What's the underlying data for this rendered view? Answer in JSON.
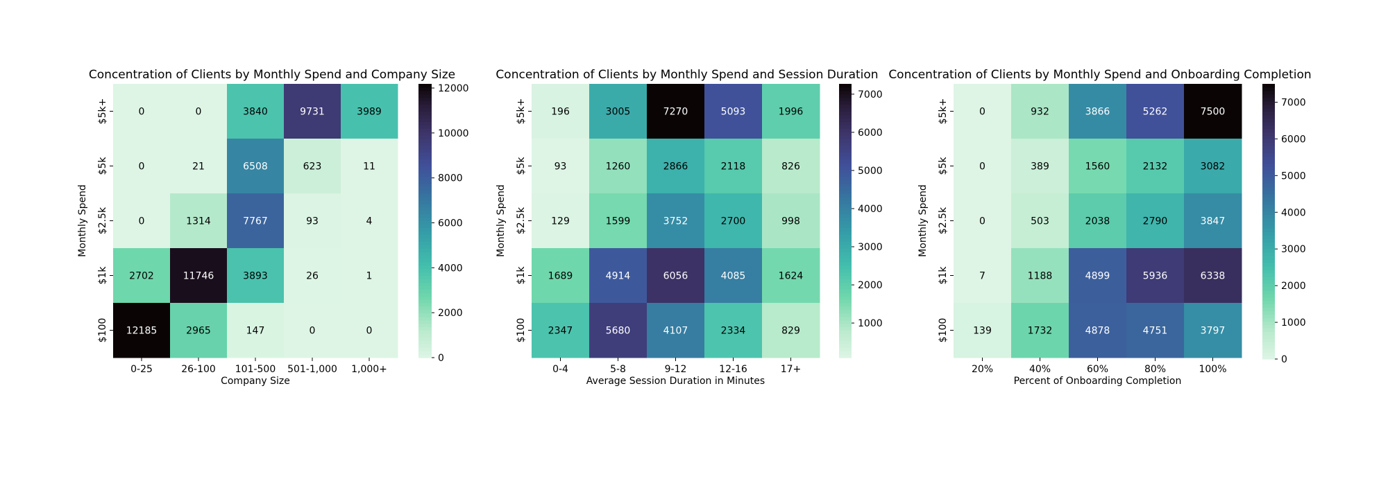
{
  "chart_data": [
    {
      "type": "heatmap",
      "title": "Concentration of Clients by Monthly Spend and Company Size",
      "xlabel": "Company Size",
      "ylabel": "Monthly Spend",
      "x_categories": [
        "0-25",
        "26-100",
        "101-500",
        "501-1,000",
        "1,000+"
      ],
      "y_categories": [
        "$5k+",
        "$5k",
        "$2.5k",
        "$1k",
        "$100"
      ],
      "values": [
        [
          0,
          0,
          3840,
          9731,
          3989
        ],
        [
          0,
          21,
          6508,
          623,
          11
        ],
        [
          0,
          1314,
          7767,
          93,
          4
        ],
        [
          2702,
          11746,
          3893,
          26,
          1
        ],
        [
          12185,
          2965,
          147,
          0,
          0
        ]
      ],
      "colorbar": {
        "min": 0,
        "max": 12185,
        "ticks": [
          "0",
          "2000",
          "4000",
          "6000",
          "8000",
          "10000",
          "12000"
        ]
      },
      "colormap": "mako_r"
    },
    {
      "type": "heatmap",
      "title": "Concentration of Clients by Monthly Spend and Session Duration",
      "xlabel": "Average Session Duration in Minutes",
      "ylabel": "Monthly Spend",
      "x_categories": [
        "0-4",
        "5-8",
        "9-12",
        "12-16",
        "17+"
      ],
      "y_categories": [
        "$5k+",
        "$5k",
        "$2.5k",
        "$1k",
        "$100"
      ],
      "values": [
        [
          196,
          3005,
          7270,
          5093,
          1996
        ],
        [
          93,
          1260,
          2866,
          2118,
          826
        ],
        [
          129,
          1599,
          3752,
          2700,
          998
        ],
        [
          1689,
          4914,
          6056,
          4085,
          1624
        ],
        [
          2347,
          5680,
          4107,
          2334,
          829
        ]
      ],
      "colorbar": {
        "min": 93,
        "max": 7270,
        "ticks": [
          "1000",
          "2000",
          "3000",
          "4000",
          "5000",
          "6000",
          "7000"
        ]
      },
      "colormap": "mako_r"
    },
    {
      "type": "heatmap",
      "title": "Concentration of Clients by Monthly Spend and Onboarding Completion",
      "xlabel": "Percent of Onboarding Completion",
      "ylabel": "Monthly Spend",
      "x_categories": [
        "20%",
        "40%",
        "60%",
        "80%",
        "100%"
      ],
      "y_categories": [
        "$5k+",
        "$5k",
        "$2.5k",
        "$1k",
        "$100"
      ],
      "values": [
        [
          0,
          932,
          3866,
          5262,
          7500
        ],
        [
          0,
          389,
          1560,
          2132,
          3082
        ],
        [
          0,
          503,
          2038,
          2790,
          3847
        ],
        [
          7,
          1188,
          4899,
          5936,
          6338
        ],
        [
          139,
          1732,
          4878,
          4751,
          3797
        ]
      ],
      "colorbar": {
        "min": 0,
        "max": 7500,
        "ticks": [
          "0",
          "1000",
          "2000",
          "3000",
          "4000",
          "5000",
          "6000",
          "7000"
        ]
      },
      "colormap": "mako_r"
    }
  ]
}
